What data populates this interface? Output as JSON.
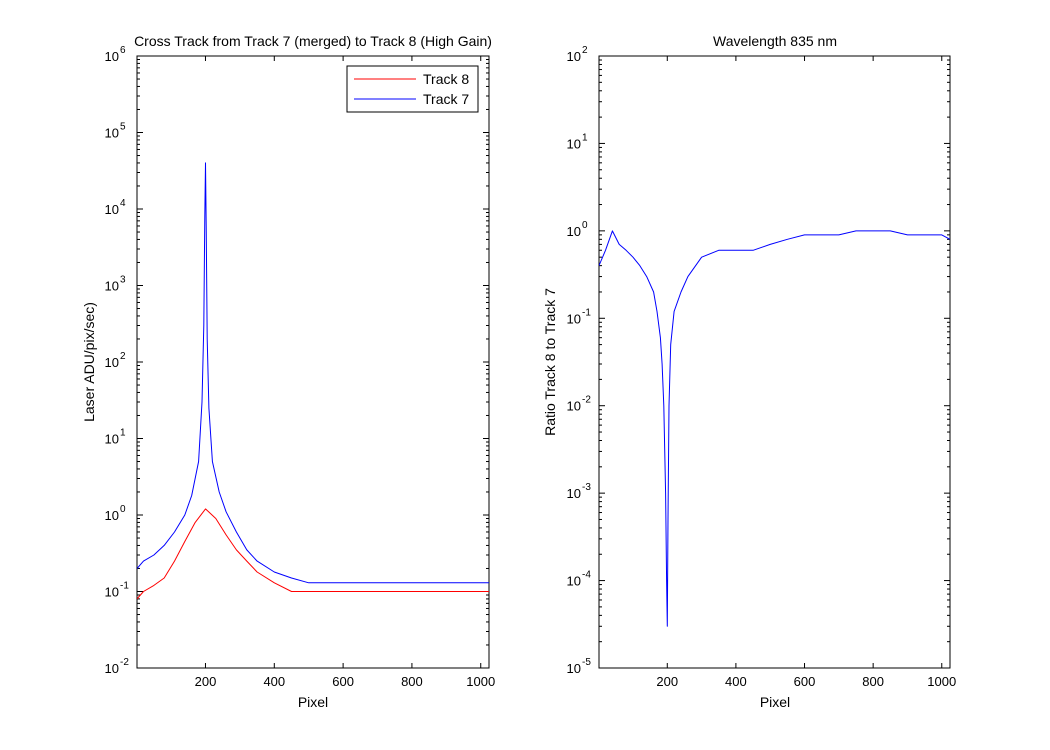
{
  "chart_data": [
    {
      "type": "line",
      "title": "Cross Track from Track 7 (merged) to Track 8 (High Gain)",
      "xlabel": "Pixel",
      "ylabel": "Laser ADU/pix/sec)",
      "xlim": [
        1,
        1024
      ],
      "ylim": [
        0.01,
        1000000
      ],
      "yscale": "log",
      "xticks": [
        200,
        400,
        600,
        800,
        1000
      ],
      "yticks": [
        {
          "base": "10",
          "exp": "-2",
          "value": 0.01
        },
        {
          "base": "10",
          "exp": "-1",
          "value": 0.1
        },
        {
          "base": "10",
          "exp": "0",
          "value": 1
        },
        {
          "base": "10",
          "exp": "1",
          "value": 10
        },
        {
          "base": "10",
          "exp": "2",
          "value": 100
        },
        {
          "base": "10",
          "exp": "3",
          "value": 1000
        },
        {
          "base": "10",
          "exp": "4",
          "value": 10000
        },
        {
          "base": "10",
          "exp": "5",
          "value": 100000
        },
        {
          "base": "10",
          "exp": "6",
          "value": 1000000
        }
      ],
      "grid": false,
      "legend": "top-right",
      "series": [
        {
          "name": "Track 8",
          "color": "#ff0000",
          "x": [
            1,
            20,
            50,
            80,
            110,
            140,
            170,
            200,
            230,
            260,
            290,
            320,
            350,
            400,
            450,
            500,
            550,
            600,
            650,
            700,
            750,
            800,
            850,
            900,
            950,
            1000,
            1024
          ],
          "y": [
            0.08,
            0.1,
            0.12,
            0.15,
            0.25,
            0.45,
            0.8,
            1.2,
            0.9,
            0.55,
            0.35,
            0.25,
            0.18,
            0.13,
            0.1,
            0.1,
            0.1,
            0.1,
            0.1,
            0.1,
            0.1,
            0.1,
            0.1,
            0.1,
            0.1,
            0.1,
            0.1
          ]
        },
        {
          "name": "Track 7",
          "color": "#0000ff",
          "x": [
            1,
            20,
            50,
            80,
            110,
            140,
            160,
            180,
            190,
            195,
            198,
            200,
            202,
            205,
            210,
            220,
            240,
            260,
            290,
            320,
            350,
            400,
            450,
            500,
            550,
            600,
            650,
            700,
            750,
            800,
            850,
            900,
            950,
            1000,
            1024
          ],
          "y": [
            0.2,
            0.25,
            0.3,
            0.4,
            0.6,
            1.0,
            1.8,
            5,
            30,
            300,
            8000,
            40000,
            6000,
            200,
            25,
            5,
            2,
            1.1,
            0.6,
            0.35,
            0.25,
            0.18,
            0.15,
            0.13,
            0.13,
            0.13,
            0.13,
            0.13,
            0.13,
            0.13,
            0.13,
            0.13,
            0.13,
            0.13,
            0.13
          ]
        }
      ]
    },
    {
      "type": "line",
      "title": "Wavelength 835 nm",
      "xlabel": "Pixel",
      "ylabel": "Ratio Track 8 to Track 7",
      "xlim": [
        1,
        1024
      ],
      "ylim": [
        1e-05,
        100
      ],
      "yscale": "log",
      "xticks": [
        200,
        400,
        600,
        800,
        1000
      ],
      "yticks": [
        {
          "base": "10",
          "exp": "-5",
          "value": 1e-05
        },
        {
          "base": "10",
          "exp": "-4",
          "value": 0.0001
        },
        {
          "base": "10",
          "exp": "-3",
          "value": 0.001
        },
        {
          "base": "10",
          "exp": "-2",
          "value": 0.01
        },
        {
          "base": "10",
          "exp": "-1",
          "value": 0.1
        },
        {
          "base": "10",
          "exp": "0",
          "value": 1
        },
        {
          "base": "10",
          "exp": "1",
          "value": 10
        },
        {
          "base": "10",
          "exp": "2",
          "value": 100
        }
      ],
      "grid": false,
      "series": [
        {
          "color": "#0000ff",
          "x": [
            1,
            20,
            40,
            60,
            80,
            100,
            120,
            140,
            160,
            170,
            180,
            185,
            190,
            195,
            198,
            200,
            202,
            205,
            210,
            220,
            240,
            260,
            300,
            350,
            400,
            450,
            500,
            550,
            600,
            650,
            700,
            750,
            800,
            850,
            900,
            950,
            1000,
            1024
          ],
          "y": [
            0.4,
            0.6,
            1.0,
            0.7,
            0.6,
            0.5,
            0.4,
            0.3,
            0.2,
            0.12,
            0.06,
            0.03,
            0.01,
            0.001,
            0.0001,
            3e-05,
            0.0005,
            0.01,
            0.05,
            0.12,
            0.2,
            0.3,
            0.5,
            0.6,
            0.6,
            0.6,
            0.7,
            0.8,
            0.9,
            0.9,
            0.9,
            1.0,
            1.0,
            1.0,
            0.9,
            0.9,
            0.9,
            0.8
          ]
        }
      ]
    }
  ]
}
